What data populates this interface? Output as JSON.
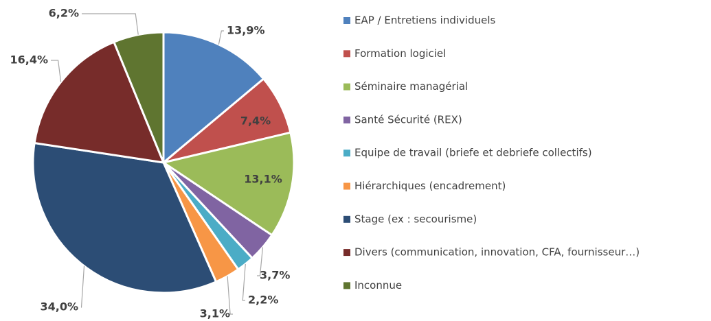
{
  "chart_data": {
    "type": "pie",
    "categories": [
      "EAP / Entretiens individuels",
      "Formation logiciel",
      "Séminaire managérial",
      "Santé Sécurité (REX)",
      "Equipe de travail (briefe et debriefe collectifs)",
      "Hiérarchiques (encadrement)",
      "Stage (ex : secourisme)",
      "Divers (communication, innovation, CFA, fournisseur…)",
      "Inconnue"
    ],
    "values": [
      13.9,
      7.4,
      13.1,
      3.7,
      2.2,
      3.1,
      34.0,
      16.4,
      6.2
    ],
    "value_labels": [
      "13,9%",
      "7,4%",
      "13,1%",
      "3,7%",
      "2,2%",
      "3,1%",
      "34,0%",
      "16,4%",
      "6,2%"
    ],
    "colors": [
      "#4f81bd",
      "#c0504d",
      "#9bbb59",
      "#8064a2",
      "#4bacc6",
      "#f79646",
      "#2c4d75",
      "#772c2a",
      "#5f7530"
    ],
    "legend": "right"
  }
}
